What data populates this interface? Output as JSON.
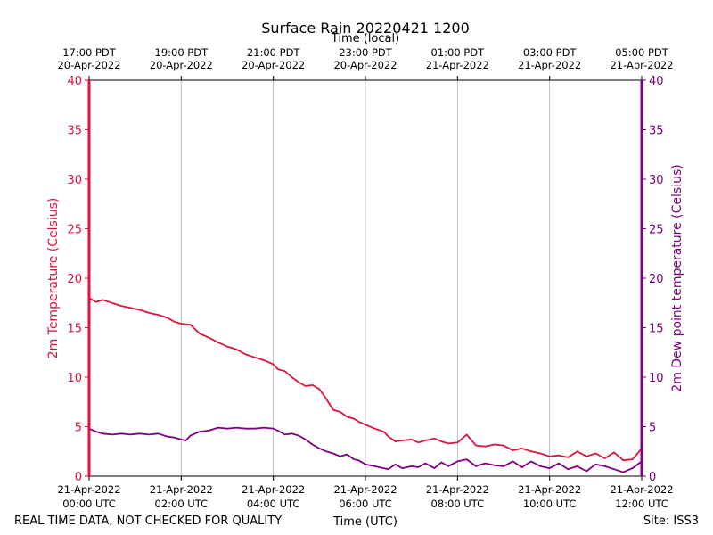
{
  "chart_data": {
    "type": "line",
    "title": "Surface Rain 20220421 1200",
    "top_axis_label": "Time (local)",
    "xlabel": "Time (UTC)",
    "ylabel_left": "2m Temperature (Celsius)",
    "ylabel_right": "2m Dew point temperature (Celsius)",
    "ylim": [
      0,
      40
    ],
    "yticks": [
      0,
      5,
      10,
      15,
      20,
      25,
      30,
      35,
      40
    ],
    "xlim_hours_utc": [
      0,
      12
    ],
    "grid": "vertical",
    "bottom_ticks": [
      {
        "hour": 0,
        "date": "21-Apr-2022",
        "time": "00:00 UTC"
      },
      {
        "hour": 2,
        "date": "21-Apr-2022",
        "time": "02:00 UTC"
      },
      {
        "hour": 4,
        "date": "21-Apr-2022",
        "time": "04:00 UTC"
      },
      {
        "hour": 6,
        "date": "21-Apr-2022",
        "time": "06:00 UTC"
      },
      {
        "hour": 8,
        "date": "21-Apr-2022",
        "time": "08:00 UTC"
      },
      {
        "hour": 10,
        "date": "21-Apr-2022",
        "time": "10:00 UTC"
      },
      {
        "hour": 12,
        "date": "21-Apr-2022",
        "time": "12:00 UTC"
      }
    ],
    "top_ticks": [
      {
        "hour": 0,
        "time": "17:00 PDT",
        "date": "20-Apr-2022"
      },
      {
        "hour": 2,
        "time": "19:00 PDT",
        "date": "20-Apr-2022"
      },
      {
        "hour": 4,
        "time": "21:00 PDT",
        "date": "20-Apr-2022"
      },
      {
        "hour": 6,
        "time": "23:00 PDT",
        "date": "20-Apr-2022"
      },
      {
        "hour": 8,
        "time": "01:00 PDT",
        "date": "21-Apr-2022"
      },
      {
        "hour": 10,
        "time": "03:00 PDT",
        "date": "21-Apr-2022"
      },
      {
        "hour": 12,
        "time": "05:00 PDT",
        "date": "21-Apr-2022"
      }
    ],
    "series": [
      {
        "name": "2m Temperature",
        "color": "#dc143c",
        "axis": "left",
        "x_hours": [
          0,
          0.15,
          0.3,
          0.5,
          0.7,
          0.9,
          1.1,
          1.3,
          1.5,
          1.7,
          1.85,
          2.0,
          2.2,
          2.4,
          2.6,
          2.8,
          3.0,
          3.2,
          3.4,
          3.6,
          3.8,
          4.0,
          4.1,
          4.25,
          4.4,
          4.55,
          4.7,
          4.85,
          5.0,
          5.15,
          5.3,
          5.45,
          5.6,
          5.75,
          5.85,
          6.0,
          6.2,
          6.4,
          6.5,
          6.65,
          6.8,
          7.0,
          7.15,
          7.3,
          7.5,
          7.65,
          7.8,
          8.0,
          8.2,
          8.4,
          8.6,
          8.8,
          9.0,
          9.2,
          9.4,
          9.6,
          9.8,
          10.0,
          10.2,
          10.4,
          10.6,
          10.8,
          11.0,
          11.2,
          11.4,
          11.6,
          11.8,
          12.0
        ],
        "values": [
          18.0,
          17.6,
          17.8,
          17.5,
          17.2,
          17.0,
          16.8,
          16.5,
          16.3,
          16.0,
          15.6,
          15.4,
          15.3,
          14.4,
          14.0,
          13.5,
          13.1,
          12.8,
          12.3,
          12.0,
          11.7,
          11.3,
          10.8,
          10.6,
          10.0,
          9.5,
          9.1,
          9.2,
          8.8,
          7.8,
          6.7,
          6.5,
          6.0,
          5.8,
          5.5,
          5.2,
          4.8,
          4.5,
          4.0,
          3.5,
          3.6,
          3.7,
          3.4,
          3.6,
          3.8,
          3.5,
          3.3,
          3.4,
          4.2,
          3.1,
          3.0,
          3.2,
          3.1,
          2.6,
          2.8,
          2.5,
          2.3,
          2.0,
          2.1,
          1.9,
          2.5,
          2.0,
          2.3,
          1.8,
          2.4,
          1.6,
          1.7,
          2.8
        ]
      },
      {
        "name": "2m Dew point temperature",
        "color": "#800080",
        "axis": "right",
        "x_hours": [
          0,
          0.15,
          0.3,
          0.5,
          0.7,
          0.9,
          1.1,
          1.3,
          1.5,
          1.7,
          1.85,
          2.0,
          2.1,
          2.2,
          2.4,
          2.6,
          2.8,
          3.0,
          3.2,
          3.4,
          3.6,
          3.8,
          4.0,
          4.1,
          4.25,
          4.4,
          4.55,
          4.7,
          4.85,
          5.0,
          5.15,
          5.3,
          5.45,
          5.6,
          5.75,
          5.85,
          6.0,
          6.2,
          6.4,
          6.5,
          6.65,
          6.8,
          7.0,
          7.15,
          7.3,
          7.5,
          7.65,
          7.8,
          8.0,
          8.2,
          8.4,
          8.6,
          8.8,
          9.0,
          9.2,
          9.4,
          9.6,
          9.8,
          10.0,
          10.2,
          10.4,
          10.6,
          10.8,
          11.0,
          11.2,
          11.4,
          11.6,
          11.8,
          12.0
        ],
        "values": [
          4.8,
          4.5,
          4.3,
          4.2,
          4.3,
          4.2,
          4.3,
          4.2,
          4.3,
          4.0,
          3.9,
          3.7,
          3.6,
          4.1,
          4.5,
          4.6,
          4.9,
          4.8,
          4.9,
          4.8,
          4.8,
          4.9,
          4.8,
          4.6,
          4.2,
          4.3,
          4.1,
          3.7,
          3.2,
          2.8,
          2.5,
          2.3,
          2.0,
          2.2,
          1.7,
          1.6,
          1.2,
          1.0,
          0.8,
          0.7,
          1.2,
          0.8,
          1.0,
          0.9,
          1.3,
          0.8,
          1.4,
          1.0,
          1.5,
          1.7,
          1.0,
          1.3,
          1.1,
          1.0,
          1.5,
          0.9,
          1.5,
          1.0,
          0.8,
          1.3,
          0.7,
          1.0,
          0.5,
          1.2,
          1.0,
          0.7,
          0.4,
          0.8,
          1.5
        ]
      }
    ]
  },
  "footer": {
    "disclaimer": "REAL TIME DATA, NOT CHECKED FOR QUALITY",
    "site": "Site: ISS3"
  },
  "colors": {
    "temperature": "#dc143c",
    "dewpoint": "#800080",
    "grid": "#b0b0b0"
  }
}
